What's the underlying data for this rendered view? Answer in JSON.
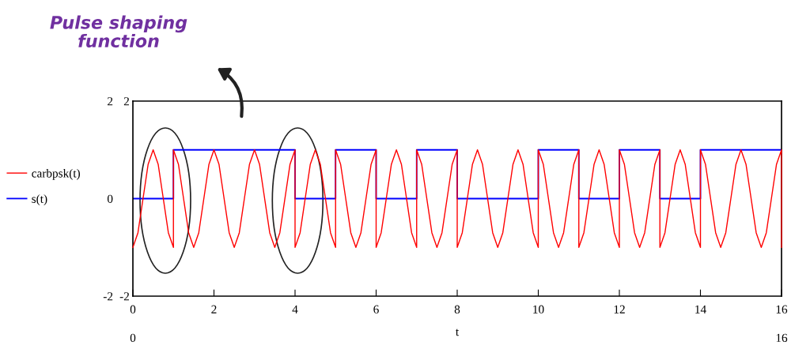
{
  "chart_data": {
    "type": "line",
    "annotations": [
      "Pulse shaping\nfunction"
    ],
    "x2label": "t",
    "xlim": [
      0,
      16
    ],
    "xticks": [
      0,
      2,
      4,
      6,
      8,
      10,
      12,
      14,
      16
    ],
    "x2lim": [
      0,
      16
    ],
    "x2ticks": [
      0,
      16
    ],
    "ylim": [
      -2,
      2
    ],
    "yticks": [
      -2,
      0,
      2
    ],
    "y2lim": [
      -2,
      2
    ],
    "y2ticks": [
      -2,
      2
    ],
    "grid": false,
    "legend": "left",
    "series": [
      {
        "name": "carbpsk(t)",
        "color": "#ff0000",
        "x": [
          0,
          0.125,
          0.25,
          0.375,
          0.5,
          0.625,
          0.75,
          0.875,
          1,
          1,
          1.125,
          1.25,
          1.375,
          1.5,
          1.625,
          1.75,
          1.875,
          2,
          2.125,
          2.25,
          2.375,
          2.5,
          2.625,
          2.75,
          2.875,
          3,
          3.125,
          3.25,
          3.375,
          3.5,
          3.625,
          3.75,
          3.875,
          4,
          4,
          4.125,
          4.25,
          4.375,
          4.5,
          4.625,
          4.75,
          4.875,
          5,
          5,
          5.125,
          5.25,
          5.375,
          5.5,
          5.625,
          5.75,
          5.875,
          6,
          6,
          6.125,
          6.25,
          6.375,
          6.5,
          6.625,
          6.75,
          6.875,
          7,
          7,
          7.125,
          7.25,
          7.375,
          7.5,
          7.625,
          7.75,
          7.875,
          8,
          8,
          8.125,
          8.25,
          8.375,
          8.5,
          8.625,
          8.75,
          8.875,
          9,
          9.125,
          9.25,
          9.375,
          9.5,
          9.625,
          9.75,
          9.875,
          10,
          10,
          10.125,
          10.25,
          10.375,
          10.5,
          10.625,
          10.75,
          10.875,
          11,
          11,
          11.125,
          11.25,
          11.375,
          11.5,
          11.625,
          11.75,
          11.875,
          12,
          12,
          12.125,
          12.25,
          12.375,
          12.5,
          12.625,
          12.75,
          12.875,
          13,
          13,
          13.125,
          13.25,
          13.375,
          13.5,
          13.625,
          13.75,
          13.875,
          14,
          14,
          14.125,
          14.25,
          14.375,
          14.5,
          14.625,
          14.75,
          14.875,
          15,
          15.125,
          15.25,
          15.375,
          15.5,
          15.625,
          15.75,
          15.875,
          16,
          16
        ],
        "values": [
          -1,
          -0.7,
          0,
          0.7,
          1,
          0.7,
          0,
          -0.7,
          -1,
          1,
          0.7,
          0,
          -0.7,
          -1,
          -0.7,
          0,
          0.7,
          1,
          0.7,
          0,
          -0.7,
          -1,
          -0.7,
          0,
          0.7,
          1,
          0.7,
          0,
          -0.7,
          -1,
          -0.7,
          0,
          0.7,
          1,
          -1,
          -0.7,
          0,
          0.7,
          1,
          0.7,
          0,
          -0.7,
          -1,
          1,
          0.7,
          0,
          -0.7,
          -1,
          -0.7,
          0,
          0.7,
          1,
          -1,
          -0.7,
          0,
          0.7,
          1,
          0.7,
          0,
          -0.7,
          -1,
          1,
          0.7,
          0,
          -0.7,
          -1,
          -0.7,
          0,
          0.7,
          1,
          -1,
          -0.7,
          0,
          0.7,
          1,
          0.7,
          0,
          -0.7,
          -1,
          -0.7,
          0,
          0.7,
          1,
          0.7,
          0,
          -0.7,
          -1,
          1,
          0.7,
          0,
          -0.7,
          -1,
          -0.7,
          0,
          0.7,
          1,
          -1,
          -0.7,
          0,
          0.7,
          1,
          0.7,
          0,
          -0.7,
          -1,
          1,
          0.7,
          0,
          -0.7,
          -1,
          -0.7,
          0,
          0.7,
          1,
          -1,
          -0.7,
          0,
          0.7,
          1,
          0.7,
          0,
          -0.7,
          -1,
          1,
          0.7,
          0,
          -0.7,
          -1,
          -0.7,
          0,
          0.7,
          1,
          0.7,
          0,
          -0.7,
          -1,
          -0.7,
          0,
          0.7,
          1,
          -1
        ]
      },
      {
        "name": "s(t)",
        "color": "#0000ff",
        "type": "step",
        "x": [
          0,
          1,
          4,
          5,
          6,
          7,
          8,
          10,
          11,
          12,
          13,
          14,
          16
        ],
        "values": [
          0,
          1,
          0,
          1,
          0,
          1,
          0,
          1,
          0,
          1,
          0,
          1,
          0
        ]
      }
    ]
  }
}
